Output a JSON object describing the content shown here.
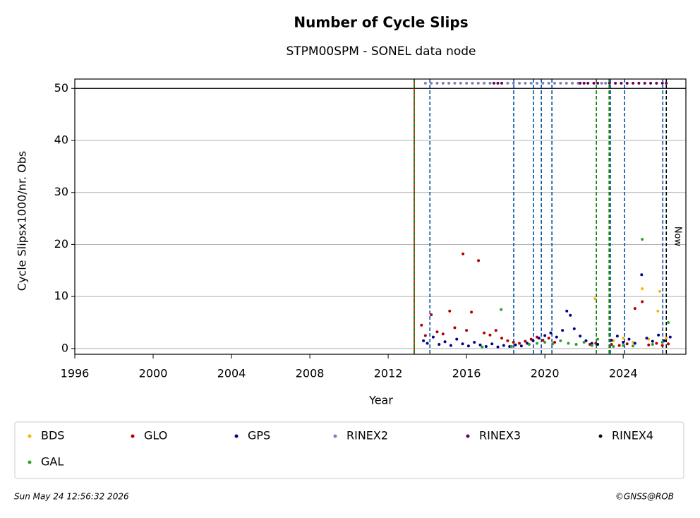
{
  "chart_data": {
    "type": "scatter",
    "title": "Number of Cycle Slips",
    "subtitle": "STPM00SPM - SONEL data node",
    "x_label": "Year",
    "y_label": "Cycle Slipsx1000/nr. Obs",
    "xlim": [
      1996,
      2027.2
    ],
    "ylim": [
      -1.1,
      51.8
    ],
    "xticks": [
      1996,
      2000,
      2004,
      2008,
      2012,
      2016,
      2020,
      2024
    ],
    "yticks": [
      0,
      10,
      20,
      30,
      40,
      50
    ],
    "grid": true,
    "hline": {
      "y": 50,
      "color": "#000000"
    },
    "vlines": [
      {
        "x": 2013.33,
        "color": "#d00000",
        "style": "solid"
      },
      {
        "x": 2013.33,
        "color": "#008000",
        "style": "dashed"
      },
      {
        "x": 2014.13,
        "color": "#0050a0",
        "style": "dashed"
      },
      {
        "x": 2018.41,
        "color": "#0050a0",
        "style": "dashed"
      },
      {
        "x": 2019.42,
        "color": "#0050a0",
        "style": "dashed"
      },
      {
        "x": 2019.82,
        "color": "#0050a0",
        "style": "dashed"
      },
      {
        "x": 2020.36,
        "color": "#0050a0",
        "style": "dashed"
      },
      {
        "x": 2022.63,
        "color": "#008000",
        "style": "dashed"
      },
      {
        "x": 2023.28,
        "color": "#008000",
        "style": "dashed"
      },
      {
        "x": 2023.35,
        "color": "#0050a0",
        "style": "dashed"
      },
      {
        "x": 2024.07,
        "color": "#0050a0",
        "style": "dashed"
      },
      {
        "x": 2026.02,
        "color": "#0050a0",
        "style": "dashed"
      },
      {
        "x": 2026.2,
        "color": "#000000",
        "style": "dashed"
      }
    ],
    "now_label": "Now",
    "series": [
      {
        "name": "BDS",
        "color": "#f5b800",
        "x": [
          2022.56,
          2023.5,
          2024.0,
          2024.5,
          2024.97,
          2025.3,
          2025.77,
          2025.87,
          2026.2
        ],
        "values": [
          9.6,
          1.5,
          2.0,
          1.2,
          11.5,
          1.8,
          7.2,
          11,
          2.0
        ]
      },
      {
        "name": "GLO",
        "color": "#b30000",
        "x": [
          2013.7,
          2013.9,
          2014.2,
          2014.5,
          2014.8,
          2015.14,
          2015.4,
          2015.82,
          2016.0,
          2016.25,
          2016.61,
          2016.9,
          2017.2,
          2017.5,
          2017.8,
          2018.1,
          2018.4,
          2018.7,
          2019.0,
          2019.3,
          2019.6,
          2019.9,
          2020.2,
          2020.5,
          2022.3,
          2022.6,
          2023.4,
          2023.8,
          2024.2,
          2024.6,
          2024.97,
          2025.3,
          2025.7,
          2026.0,
          2026.3
        ],
        "values": [
          4.5,
          2.5,
          6.5,
          3.2,
          2.8,
          7.2,
          4.0,
          18.2,
          3.5,
          7.0,
          16.9,
          3.0,
          2.6,
          3.5,
          2.0,
          1.5,
          1.2,
          1.0,
          1.4,
          1.8,
          2.2,
          1.6,
          2.0,
          1.2,
          0.8,
          1.0,
          0.8,
          0.6,
          0.9,
          7.7,
          9.0,
          0.7,
          1.0,
          0.6,
          0.9
        ]
      },
      {
        "name": "GPS",
        "color": "#00008b",
        "x": [
          2013.8,
          2014.0,
          2014.3,
          2014.6,
          2014.9,
          2015.2,
          2015.5,
          2015.8,
          2016.1,
          2016.4,
          2016.7,
          2017.0,
          2017.3,
          2017.6,
          2017.9,
          2018.2,
          2018.5,
          2018.8,
          2019.1,
          2019.4,
          2019.7,
          2020.0,
          2020.3,
          2020.6,
          2020.9,
          2021.12,
          2021.3,
          2021.5,
          2021.8,
          2022.1,
          2022.4,
          2022.7,
          2023.4,
          2023.7,
          2024.0,
          2024.3,
          2024.6,
          2024.94,
          2025.2,
          2025.5,
          2025.8,
          2026.1,
          2026.4
        ],
        "values": [
          1.5,
          1.0,
          2.2,
          0.8,
          1.3,
          0.6,
          1.8,
          0.9,
          0.5,
          1.2,
          0.7,
          0.4,
          0.9,
          0.3,
          0.6,
          0.4,
          0.7,
          0.5,
          1.0,
          1.5,
          2.0,
          2.5,
          3.0,
          2.2,
          3.5,
          7.2,
          6.4,
          3.8,
          2.4,
          1.5,
          1.0,
          0.8,
          1.6,
          2.4,
          1.2,
          1.8,
          1.0,
          14.2,
          2.0,
          1.4,
          2.6,
          1.5,
          2.2
        ]
      },
      {
        "name": "RINEX2",
        "color": "#8080c0",
        "x": [
          2013.9,
          2014.2,
          2014.5,
          2014.8,
          2015.1,
          2015.4,
          2015.7,
          2016.0,
          2016.3,
          2016.6,
          2016.9,
          2017.2,
          2018.1,
          2018.4,
          2018.7,
          2019.0,
          2019.3,
          2019.6,
          2019.9,
          2020.2,
          2020.5,
          2020.8,
          2021.1,
          2021.4,
          2021.7,
          2022.9,
          2023.1
        ],
        "values": [
          51,
          51,
          51,
          51,
          51,
          51,
          51,
          51,
          51,
          51,
          51,
          51,
          51,
          51,
          51,
          51,
          51,
          51,
          51,
          51,
          51,
          51,
          51,
          51,
          51,
          51,
          51
        ]
      },
      {
        "name": "RINEX3",
        "color": "#6a0060",
        "x": [
          2017.4,
          2017.6,
          2017.8,
          2021.8,
          2022.0,
          2022.2,
          2022.5,
          2022.7,
          2023.3,
          2023.6,
          2023.9,
          2024.2,
          2024.5,
          2024.8,
          2025.1,
          2025.4,
          2025.7,
          2026.0,
          2026.2
        ],
        "values": [
          51,
          51,
          51,
          51,
          51,
          51,
          51,
          51,
          51,
          51,
          51,
          51,
          51,
          51,
          51,
          51,
          51,
          51,
          51
        ]
      },
      {
        "name": "RINEX4",
        "color": "#1a0020",
        "x": [],
        "values": []
      },
      {
        "name": "GAL",
        "color": "#2ca02c",
        "x": [
          2016.8,
          2017.77,
          2018.3,
          2019.2,
          2019.6,
          2020.0,
          2020.4,
          2020.8,
          2021.2,
          2021.6,
          2022.0,
          2022.4,
          2022.7,
          2023.5,
          2024.0,
          2024.5,
          2024.97,
          2025.5,
          2026.0,
          2026.3
        ],
        "values": [
          0.3,
          7.5,
          0.4,
          0.8,
          1.0,
          1.2,
          0.9,
          1.5,
          1.0,
          0.8,
          1.2,
          0.6,
          1.8,
          0.4,
          0.6,
          0.5,
          21,
          0.8,
          1.2,
          5.0
        ]
      }
    ],
    "footer_left": "Sun May 24 12:56:32 2026",
    "footer_right": "©GNSS@ROB"
  }
}
